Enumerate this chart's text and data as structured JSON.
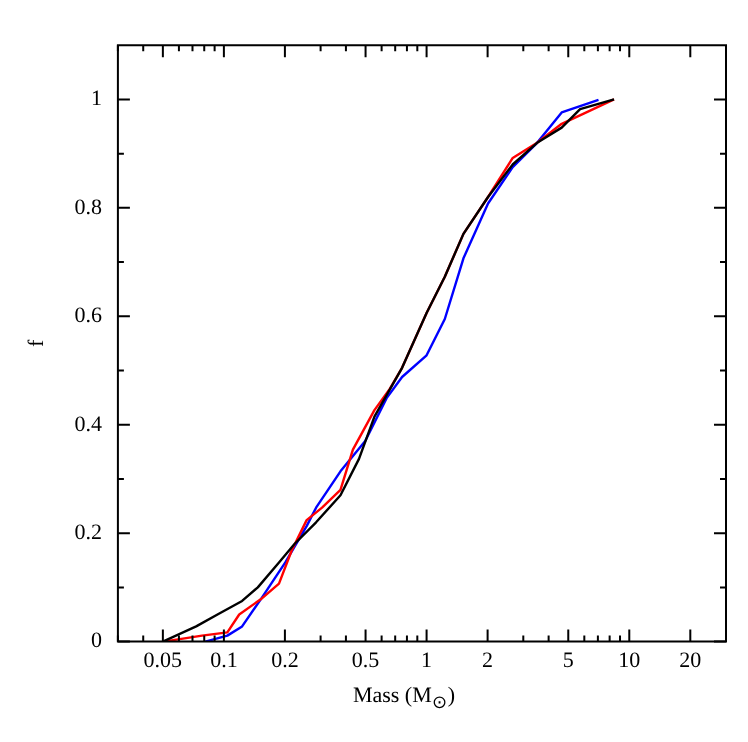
{
  "chart_data": {
    "type": "line",
    "xlabel": "Mass (M$_{⊙}$)",
    "ylabel": "f",
    "log": "x",
    "grid": false,
    "legend": false,
    "marker": "none",
    "line_style": "solid",
    "xlim": [
      0.03,
      30
    ],
    "ylim": [
      0,
      1.1
    ],
    "xticks": [
      {
        "value": 0.03,
        "label": null
      },
      {
        "value": 0.04,
        "label": null
      },
      0.05,
      {
        "value": 0.06,
        "label": null
      },
      {
        "value": 0.07,
        "label": null
      },
      {
        "value": 0.08,
        "label": null
      },
      {
        "value": 0.09,
        "label": null
      },
      0.1,
      0.2,
      {
        "value": 0.3,
        "label": null
      },
      {
        "value": 0.4,
        "label": null
      },
      0.5,
      {
        "value": 0.6,
        "label": null
      },
      {
        "value": 0.7,
        "label": null
      },
      {
        "value": 0.8,
        "label": null
      },
      {
        "value": 0.9,
        "label": null
      },
      1,
      2,
      {
        "value": 3,
        "label": null
      },
      {
        "value": 4,
        "label": null
      },
      5,
      {
        "value": 6,
        "label": null
      },
      {
        "value": 7,
        "label": null
      },
      {
        "value": 8,
        "label": null
      },
      {
        "value": 9,
        "label": null
      },
      10,
      20,
      {
        "value": 30,
        "label": null
      }
    ],
    "yticks": [
      0,
      {
        "value": 0.1,
        "label": null
      },
      0.2,
      {
        "value": 0.3,
        "label": null
      },
      0.4,
      {
        "value": 0.5,
        "label": null
      },
      0.6,
      {
        "value": 0.7,
        "label": null
      },
      0.8,
      {
        "value": 0.9,
        "label": null
      },
      1
    ],
    "series": [
      {
        "color": "#000000",
        "x": [
          0.05,
          0.073,
          0.093,
          0.123,
          0.147,
          0.187,
          0.223,
          0.285,
          0.376,
          0.464,
          0.553,
          0.757,
          1,
          1.23,
          1.52,
          2.01,
          2.66,
          3.51,
          4.64,
          5.72,
          8.41
        ],
        "values": [
          0,
          0.028,
          0.05,
          0.075,
          0.1,
          0.146,
          0.18,
          0.22,
          0.27,
          0.337,
          0.415,
          0.505,
          0.606,
          0.673,
          0.752,
          0.82,
          0.88,
          0.92,
          0.948,
          0.982,
          1
        ]
      },
      {
        "color": "#ff0000",
        "x": [
          0.05,
          0.064,
          0.078,
          0.104,
          0.119,
          0.152,
          0.187,
          0.216,
          0.256,
          0.305,
          0.376,
          0.433,
          0.553,
          0.658,
          0.757,
          1,
          1.23,
          1.52,
          2.01,
          2.66,
          3.51,
          4.64,
          6.14,
          8.41
        ],
        "values": [
          0,
          0.006,
          0.011,
          0.017,
          0.05,
          0.078,
          0.107,
          0.168,
          0.224,
          0.247,
          0.28,
          0.354,
          0.427,
          0.466,
          0.505,
          0.606,
          0.673,
          0.752,
          0.82,
          0.892,
          0.92,
          0.955,
          0.976,
          1
        ]
      },
      {
        "color": "#0000ff",
        "x": [
          0.081,
          0.104,
          0.123,
          0.152,
          0.201,
          0.256,
          0.285,
          0.376,
          0.498,
          0.635,
          0.757,
          1,
          1.23,
          1.52,
          2.01,
          2.66,
          3.51,
          4.64,
          7.05
        ],
        "values": [
          0,
          0.011,
          0.028,
          0.078,
          0.146,
          0.213,
          0.247,
          0.314,
          0.37,
          0.449,
          0.488,
          0.528,
          0.595,
          0.707,
          0.808,
          0.875,
          0.92,
          0.976,
          0.999
        ]
      }
    ]
  }
}
